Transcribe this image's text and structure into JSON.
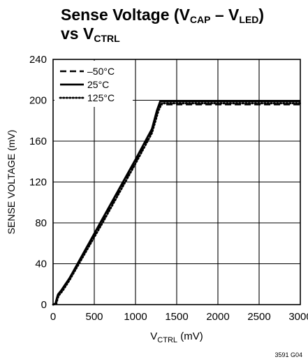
{
  "title": {
    "line1_prefix": "Sense Voltage (V",
    "line1_sub1": "CAP",
    "line1_mid": " – V",
    "line1_sub2": "LED",
    "line1_suffix": ")",
    "line2_prefix": "vs V",
    "line2_sub": "CTRL"
  },
  "figure_id": "3591 G04",
  "chart_data": {
    "type": "line",
    "title": "Sense Voltage (VCAP – VLED) vs VCTRL",
    "xlabel_main": "V",
    "xlabel_sub": "CTRL",
    "xlabel_unit": " (mV)",
    "ylabel": "SENSE VOLTAGE (mV)",
    "xlim": [
      0,
      3000
    ],
    "ylim": [
      0,
      240
    ],
    "xticks": [
      0,
      500,
      1000,
      1500,
      2000,
      2500,
      3000
    ],
    "xtick_labels": [
      "0",
      "500",
      "1000",
      "1500",
      "2000",
      "2500",
      "3000"
    ],
    "yticks": [
      0,
      40,
      80,
      120,
      160,
      200,
      240
    ],
    "ytick_labels": [
      "0",
      "40",
      "80",
      "120",
      "160",
      "200",
      "240"
    ],
    "grid": true,
    "legend_position": "top-left",
    "series": [
      {
        "name": "–50°C",
        "style": "dashed",
        "x": [
          0,
          30,
          45,
          60,
          100,
          200,
          400,
          600,
          800,
          1000,
          1200,
          1260,
          1300,
          1400,
          3000
        ],
        "y": [
          0,
          1,
          6,
          10,
          14,
          26,
          54,
          82,
          111,
          140,
          170,
          188,
          196,
          196,
          196
        ]
      },
      {
        "name": "25°C",
        "style": "solid",
        "x": [
          0,
          30,
          45,
          60,
          100,
          200,
          400,
          600,
          800,
          1000,
          1200,
          1260,
          1300,
          3000
        ],
        "y": [
          0,
          1,
          6,
          10,
          14,
          26,
          55,
          84,
          113,
          142,
          172,
          190,
          199,
          199
        ]
      },
      {
        "name": "125°C",
        "style": "dotted",
        "x": [
          0,
          40,
          55,
          70,
          120,
          200,
          400,
          600,
          800,
          1000,
          1200,
          1280,
          1320,
          1400,
          3000
        ],
        "y": [
          0,
          1,
          6,
          9,
          14,
          24,
          52,
          80,
          109,
          138,
          168,
          190,
          197,
          197,
          197
        ]
      }
    ]
  }
}
